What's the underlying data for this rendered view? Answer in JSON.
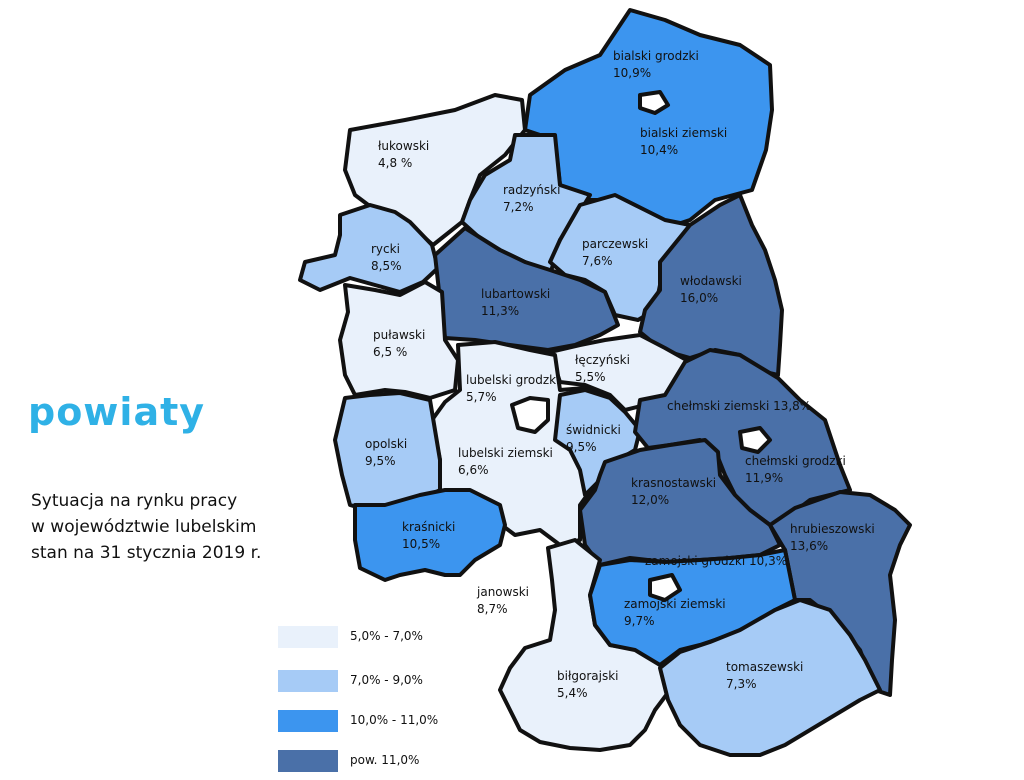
{
  "title": "powiaty",
  "subtitle": [
    "Sytuacja na rynku pracy",
    "w województwie lubelskim",
    "stan na 31 stycznia 2019 r."
  ],
  "colors": {
    "very_light": "#e9f1fb",
    "light": "#a6cbf6",
    "medium": "#3c95ef",
    "dark": "#4a70a8",
    "title": "#2fb1e6"
  },
  "legend": [
    {
      "label": "5,0% - 7,0%",
      "color": "#e9f1fb"
    },
    {
      "label": "7,0% - 9,0%",
      "color": "#a6cbf6"
    },
    {
      "label": "10,0% - 11,0%",
      "color": "#3c95ef"
    },
    {
      "label": "pow. 11,0%",
      "color": "#4a70a8"
    }
  ],
  "regions": [
    {
      "name": "bialski grodzki",
      "rate": "10,9%"
    },
    {
      "name": "bialski ziemski",
      "rate": "10,4%"
    },
    {
      "name": "łukowski",
      "rate": "4,8 %"
    },
    {
      "name": "radzyński",
      "rate": "7,2%"
    },
    {
      "name": "parczewski",
      "rate": "7,6%"
    },
    {
      "name": "rycki",
      "rate": "8,5%"
    },
    {
      "name": "lubartowski",
      "rate": "11,3%"
    },
    {
      "name": "włodawski",
      "rate": "16,0%"
    },
    {
      "name": "puławski",
      "rate": "6,5 %"
    },
    {
      "name": "łęczyński",
      "rate": "5,5%"
    },
    {
      "name": "lubelski grodzki",
      "rate": "5,7%"
    },
    {
      "name": "chełmski ziemski 13,8%",
      "rate": ""
    },
    {
      "name": "opolski",
      "rate": "9,5%"
    },
    {
      "name": "świdnicki",
      "rate": "9,5%"
    },
    {
      "name": "lubelski ziemski",
      "rate": "6,6%"
    },
    {
      "name": "chełmski grodzki",
      "rate": "11,9%"
    },
    {
      "name": "krasnostawski",
      "rate": "12,0%"
    },
    {
      "name": "kraśnicki",
      "rate": "10,5%"
    },
    {
      "name": "hrubieszowski",
      "rate": "13,6%"
    },
    {
      "name": "zamojski grodzki 10,3%",
      "rate": ""
    },
    {
      "name": "janowski",
      "rate": "8,7%"
    },
    {
      "name": "zamojski ziemski",
      "rate": "9,7%"
    },
    {
      "name": "tomaszewski",
      "rate": "7,3%"
    },
    {
      "name": "biłgorajski",
      "rate": "5,4%"
    }
  ]
}
